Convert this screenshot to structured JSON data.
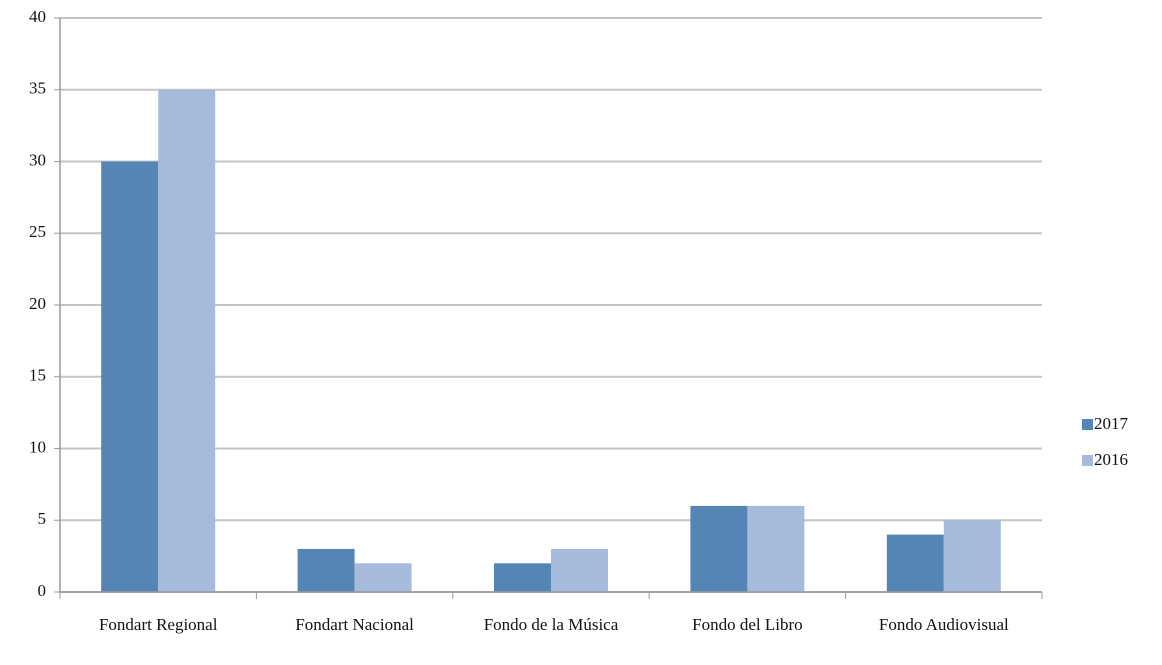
{
  "chart_data": {
    "type": "bar",
    "categories": [
      "Fondart Regional",
      "Fondart Nacional",
      "Fondo de la Música",
      "Fondo del Libro",
      "Fondo Audiovisual"
    ],
    "series": [
      {
        "name": "2017",
        "color": "#5585b5",
        "values": [
          30,
          3,
          2,
          6,
          4
        ]
      },
      {
        "name": "2016",
        "color": "#a6badb",
        "values": [
          35,
          2,
          3,
          6,
          5
        ]
      }
    ],
    "ylim": [
      0,
      40
    ],
    "yticks": [
      0,
      5,
      10,
      15,
      20,
      25,
      30,
      35,
      40
    ],
    "grid": true,
    "legend": "right"
  }
}
